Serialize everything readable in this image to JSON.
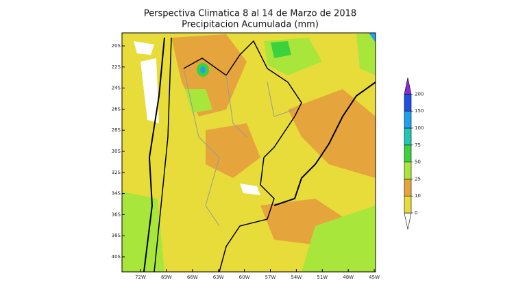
{
  "header": {
    "title": "Perspectiva Climatica 8 al 14 de Marzo de 2018",
    "subtitle": "Precipitacion Acumulada (mm)"
  },
  "map": {
    "lat_labels": [
      "20S",
      "22S",
      "24S",
      "26S",
      "28S",
      "30S",
      "32S",
      "34S",
      "36S",
      "38S",
      "40S"
    ],
    "lon_labels": [
      "72W",
      "69W",
      "66W",
      "63W",
      "60W",
      "57W",
      "54W",
      "51W",
      "48W",
      "45W"
    ]
  },
  "colorbar": {
    "levels": [
      0,
      10,
      25,
      50,
      75,
      100,
      150,
      200
    ],
    "colors": [
      "#e8dc3a",
      "#e6a53c",
      "#a8e63c",
      "#3cd23c",
      "#1ec8b4",
      "#1ea0f0",
      "#1e50e6",
      "#8c28d2"
    ]
  }
}
